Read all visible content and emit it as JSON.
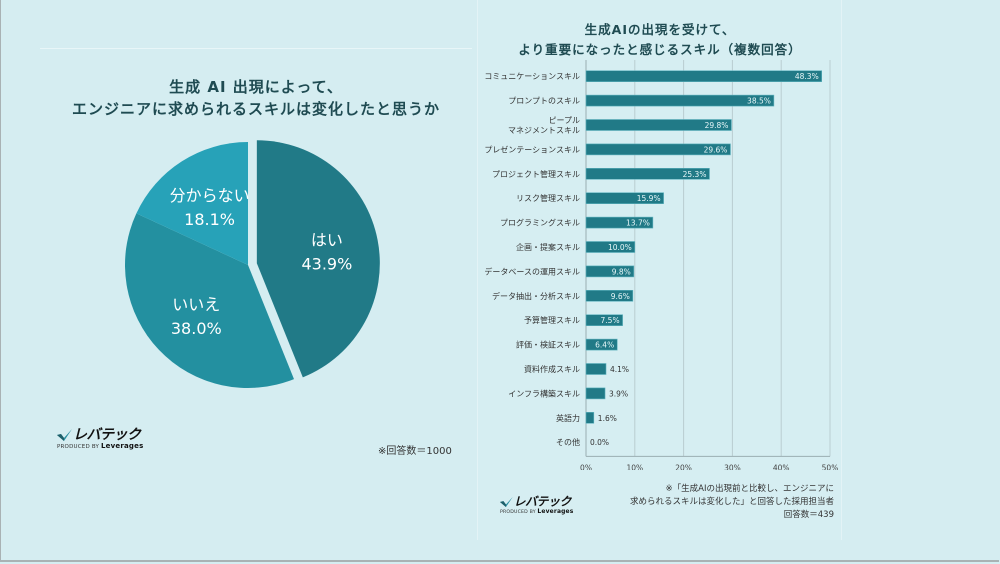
{
  "left_panel": {
    "title_lines": [
      "生成 AI 出現によって、",
      "エンジニアに求められるスキルは変化したと思うか"
    ],
    "note": "※回答数＝1000",
    "logo": {
      "brand": "レバテック",
      "produced_by": "PRODUCED BY",
      "company": "Leverages"
    }
  },
  "right_panel": {
    "title_lines": [
      "生成AIの出現を受けて、",
      "より重要になったと感じるスキル（複数回答）"
    ],
    "note_lines": [
      "※「生成AIの出現前と比較し、エンジニアに",
      "求められるスキルは変化した」と回答した採用担当者",
      "回答数＝439"
    ],
    "logo": {
      "brand": "レバテック",
      "produced_by": "PRODUCED BY",
      "company": "Leverages"
    }
  },
  "chart_data": [
    {
      "type": "pie",
      "title": "生成 AI 出現によって、エンジニアに求められるスキルは変化したと思うか",
      "slices": [
        {
          "label": "はい",
          "value": 43.9,
          "display": "43.9%",
          "color": "#217a87",
          "exploded": true
        },
        {
          "label": "いいえ",
          "value": 38.0,
          "display": "38.0%",
          "color": "#2390a0",
          "exploded": false
        },
        {
          "label": "分からない",
          "value": 18.1,
          "display": "18.1%",
          "color": "#27a2b8",
          "exploded": false
        }
      ],
      "note": "※回答数＝1000"
    },
    {
      "type": "bar",
      "orientation": "horizontal",
      "title": "生成AIの出現を受けて、より重要になったと感じるスキル（複数回答）",
      "bar_color": "#217a87",
      "categories": [
        [
          "コミュニケーションスキル"
        ],
        [
          "プロンプトのスキル"
        ],
        [
          "ピープル",
          "マネジメントスキル"
        ],
        [
          "プレゼンテーションスキル"
        ],
        [
          "プロジェクト管理スキル"
        ],
        [
          "リスク管理スキル"
        ],
        [
          "プログラミングスキル"
        ],
        [
          "企画・提案スキル"
        ],
        [
          "データベースの運用スキル"
        ],
        [
          "データ抽出・分析スキル"
        ],
        [
          "予算管理スキル"
        ],
        [
          "評価・検証スキル"
        ],
        [
          "資料作成スキル"
        ],
        [
          "インフラ構築スキル"
        ],
        [
          "英語力"
        ],
        [
          "その他"
        ]
      ],
      "values": [
        48.3,
        38.5,
        29.8,
        29.6,
        25.3,
        15.9,
        13.7,
        10.0,
        9.8,
        9.6,
        7.5,
        6.4,
        4.1,
        3.9,
        1.6,
        0.0
      ],
      "value_labels": [
        "48.3%",
        "38.5%",
        "29.8%",
        "29.6%",
        "25.3%",
        "15.9%",
        "13.7%",
        "10.0%",
        "9.8%",
        "9.6%",
        "7.5%",
        "6.4%",
        "4.1%",
        "3.9%",
        "1.6%",
        "0.0%"
      ],
      "xlim": [
        0,
        50
      ],
      "xticks": [
        0,
        10,
        20,
        30,
        40,
        50
      ],
      "xtick_labels": [
        "0%",
        "10%",
        "20%",
        "30%",
        "40%",
        "50%"
      ],
      "grid": true,
      "xlabel": "",
      "ylabel": ""
    }
  ]
}
